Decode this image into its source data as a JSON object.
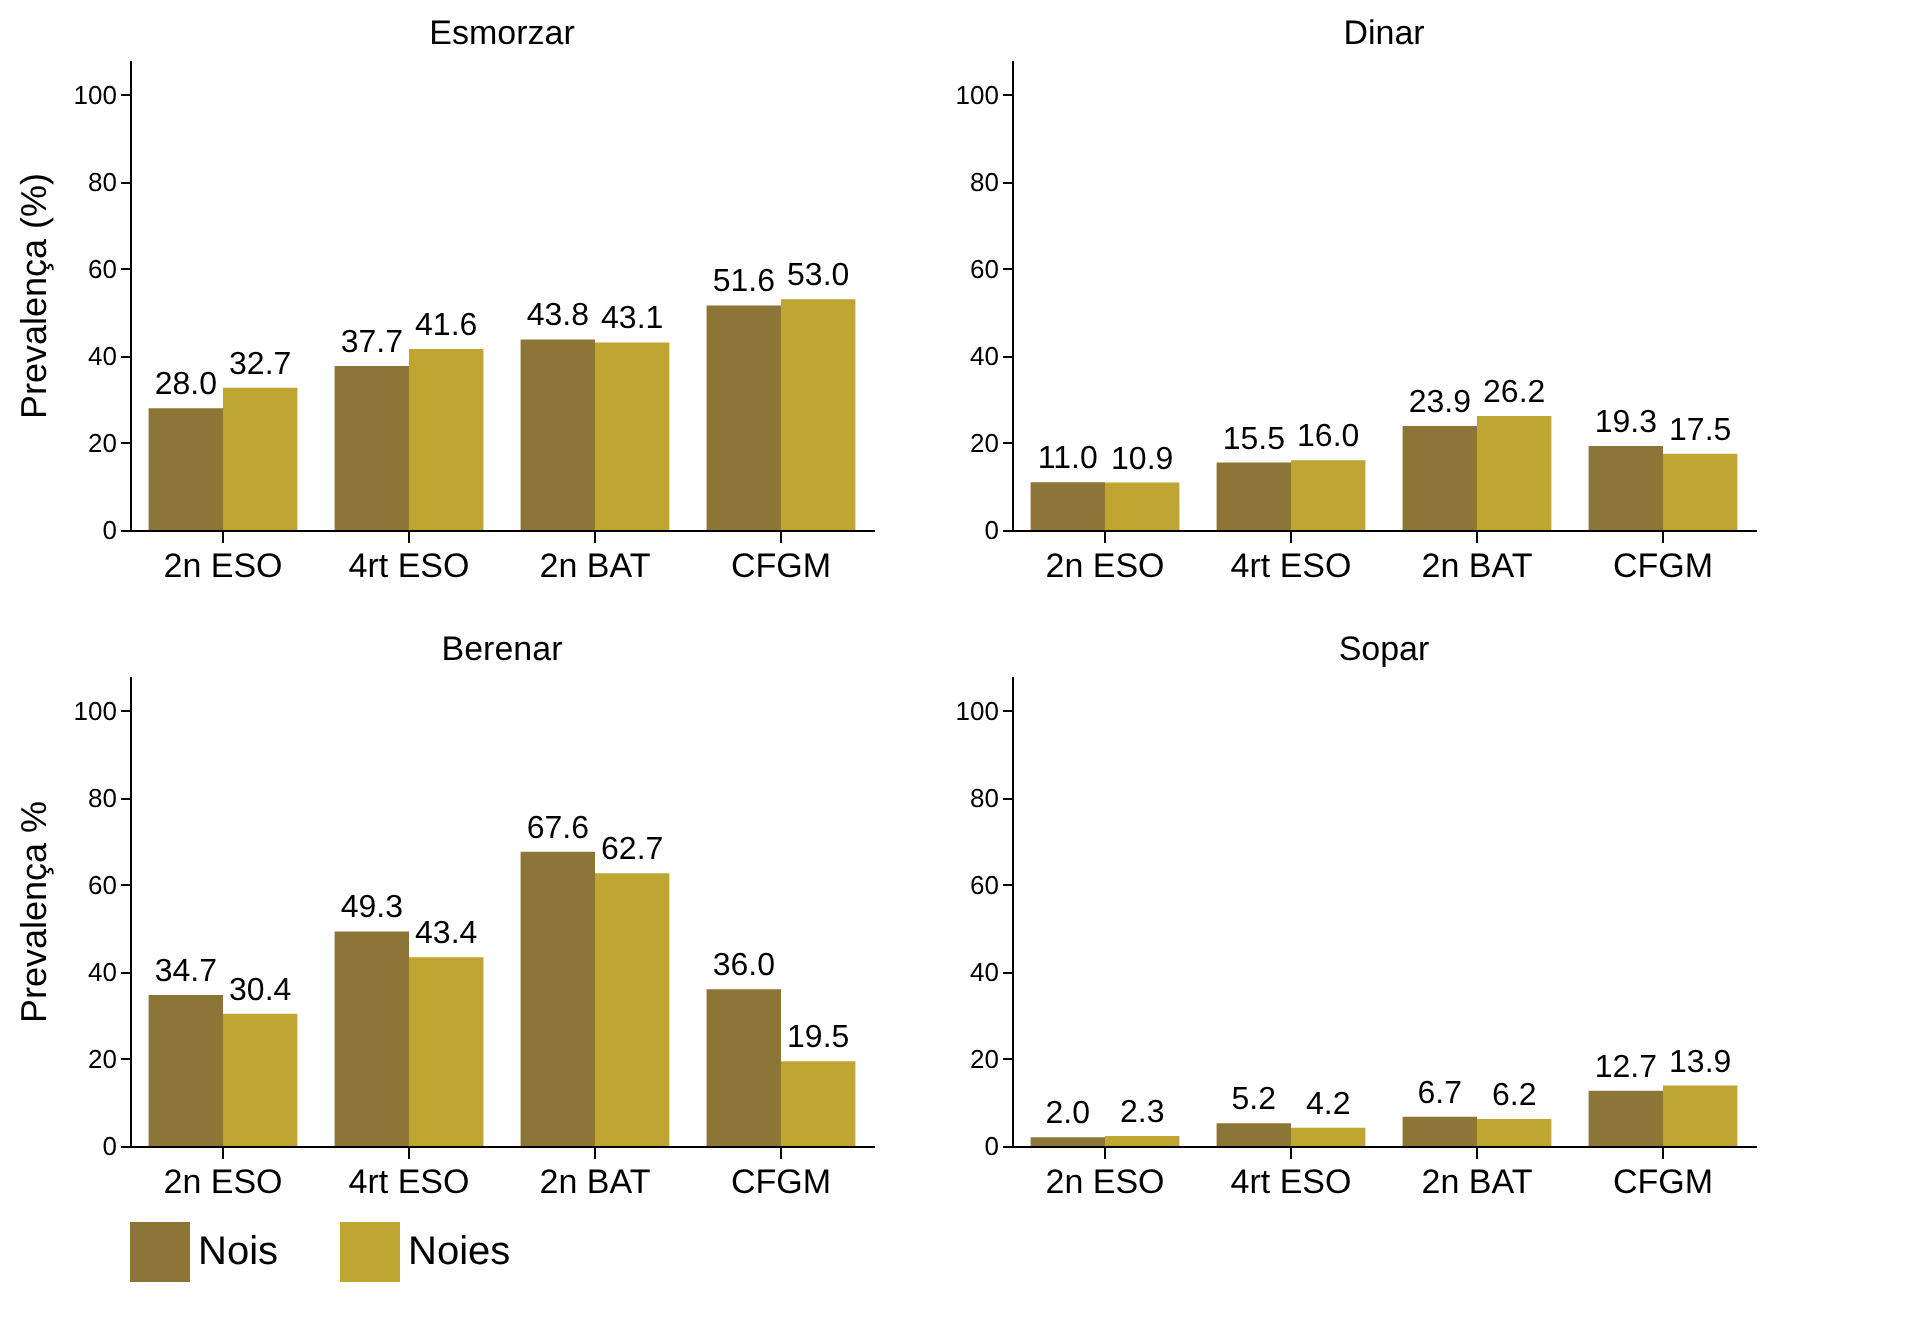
{
  "chart_data": [
    {
      "type": "bar",
      "title": "Esmorzar",
      "ylabel": "Prevalença (%)",
      "categories": [
        "2n ESO",
        "4rt ESO",
        "2n BAT",
        "CFGM"
      ],
      "series": [
        {
          "name": "Nois",
          "color": "#8c7536",
          "values": [
            28.0,
            37.7,
            43.8,
            51.6
          ],
          "value_labels": [
            "28.0",
            "37.7",
            "43.8",
            "51.6"
          ]
        },
        {
          "name": "Noies",
          "color": "#bfa532",
          "values": [
            32.7,
            41.6,
            43.1,
            53.0
          ],
          "value_labels": [
            "32.7",
            "41.6",
            "43.1",
            "53.0"
          ]
        }
      ],
      "ylim": [
        0,
        108
      ],
      "yticks": [
        0,
        20,
        40,
        60,
        80,
        100
      ],
      "legend": "bottom"
    },
    {
      "type": "bar",
      "title": "Dinar",
      "categories": [
        "2n ESO",
        "4rt ESO",
        "2n BAT",
        "CFGM"
      ],
      "series": [
        {
          "name": "Nois",
          "color": "#8c7536",
          "values": [
            11.0,
            15.5,
            23.9,
            19.3
          ],
          "value_labels": [
            "11.0",
            "15.5",
            "23.9",
            "19.3"
          ]
        },
        {
          "name": "Noies",
          "color": "#bfa532",
          "values": [
            10.9,
            16.0,
            26.2,
            17.5
          ],
          "value_labels": [
            "10.9",
            "16.0",
            "26.2",
            "17.5"
          ]
        }
      ],
      "ylim": [
        0,
        108
      ],
      "yticks": [
        0,
        20,
        40,
        60,
        80,
        100
      ],
      "legend": "bottom"
    },
    {
      "type": "bar",
      "title": "Berenar",
      "ylabel": "Prevalença %",
      "categories": [
        "2n ESO",
        "4rt ESO",
        "2n BAT",
        "CFGM"
      ],
      "series": [
        {
          "name": "Nois",
          "color": "#8c7536",
          "values": [
            34.7,
            49.3,
            67.6,
            36.0
          ],
          "value_labels": [
            "34.7",
            "49.3",
            "67.6",
            "36.0"
          ]
        },
        {
          "name": "Noies",
          "color": "#bfa532",
          "values": [
            30.4,
            43.4,
            62.7,
            19.5
          ],
          "value_labels": [
            "30.4",
            "43.4",
            "62.7",
            "19.5"
          ]
        }
      ],
      "ylim": [
        0,
        108
      ],
      "yticks": [
        0,
        20,
        40,
        60,
        80,
        100
      ],
      "legend": "bottom"
    },
    {
      "type": "bar",
      "title": "Sopar",
      "categories": [
        "2n ESO",
        "4rt ESO",
        "2n BAT",
        "CFGM"
      ],
      "series": [
        {
          "name": "Nois",
          "color": "#8c7536",
          "values": [
            2.0,
            5.2,
            6.7,
            12.7
          ],
          "value_labels": [
            "2.0",
            "5.2",
            "6.7",
            "12.7"
          ]
        },
        {
          "name": "Noies",
          "color": "#bfa532",
          "values": [
            2.3,
            4.2,
            6.2,
            13.9
          ],
          "value_labels": [
            "2.3",
            "4.2",
            "6.2",
            "13.9"
          ]
        }
      ],
      "ylim": [
        0,
        108
      ],
      "yticks": [
        0,
        20,
        40,
        60,
        80,
        100
      ],
      "legend": "bottom"
    }
  ]
}
